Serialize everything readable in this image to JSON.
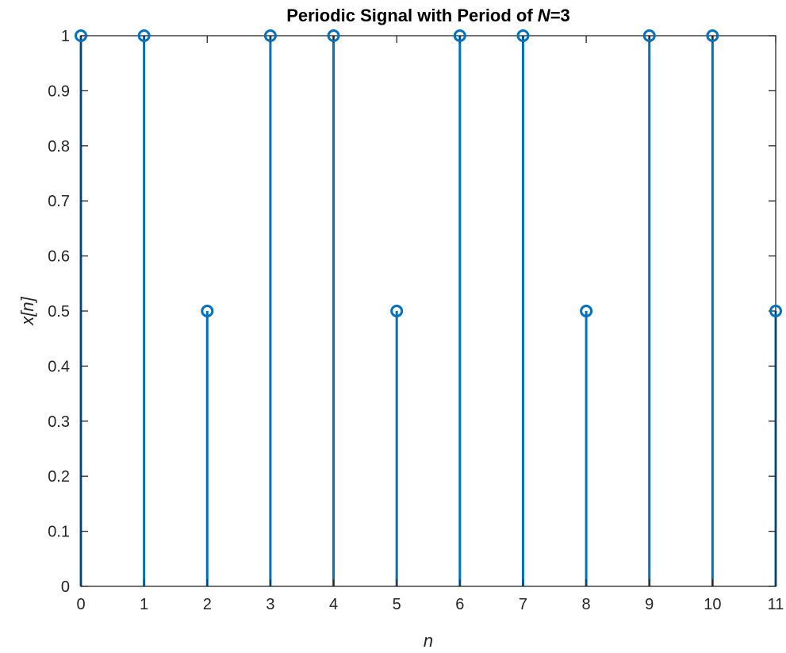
{
  "chart_data": {
    "type": "stem",
    "title_parts": [
      {
        "text": "Periodic Signal with Period of ",
        "italic": false
      },
      {
        "text": "N",
        "italic": true
      },
      {
        "text": "=3",
        "italic": false
      }
    ],
    "xlabel": "n",
    "ylabel": "x[n]",
    "xlim": [
      0,
      11
    ],
    "ylim": [
      0,
      1
    ],
    "xticks": [
      "0",
      "1",
      "2",
      "3",
      "4",
      "5",
      "6",
      "7",
      "8",
      "9",
      "10",
      "11"
    ],
    "yticks": [
      "0",
      "0.1",
      "0.2",
      "0.3",
      "0.4",
      "0.5",
      "0.6",
      "0.7",
      "0.8",
      "0.9",
      "1"
    ],
    "x": [
      0,
      1,
      2,
      3,
      4,
      5,
      6,
      7,
      8,
      9,
      10,
      11
    ],
    "y": [
      1,
      1,
      0.5,
      1,
      1,
      0.5,
      1,
      1,
      0.5,
      1,
      1,
      0.5
    ],
    "grid": false,
    "colors": {
      "series": "#0072BD",
      "axes": "#262626"
    }
  }
}
